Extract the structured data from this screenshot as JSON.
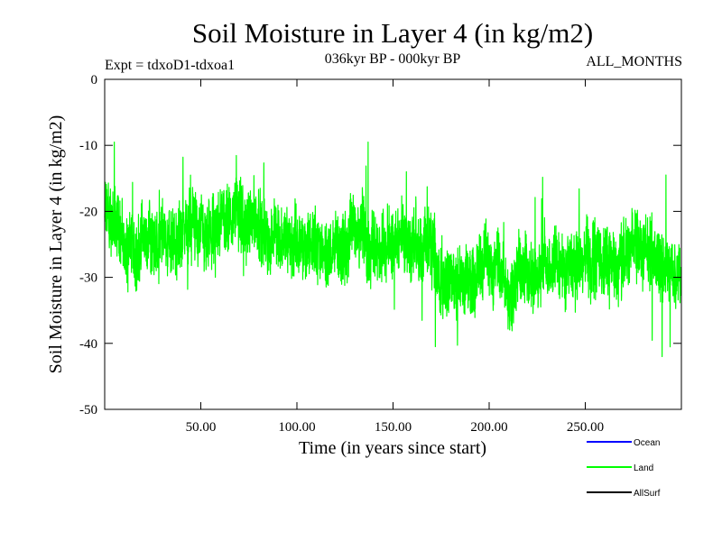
{
  "chart_data": {
    "type": "line",
    "title": "Soil Moisture in Layer 4 (in kg/m2)",
    "subtitle": "036kyr BP - 000kyr BP",
    "experiment_label": "Expt = tdxoD1-tdxoa1",
    "months_label": "ALL_MONTHS",
    "xlabel": "Time (in years since start)",
    "ylabel": "Soil Moisture in Layer 4 (in kg/m2)",
    "xlim": [
      0,
      300
    ],
    "ylim": [
      -50,
      0
    ],
    "x_ticks": [
      50,
      100,
      150,
      200,
      250
    ],
    "x_tick_labels": [
      "50.00",
      "100.00",
      "150.00",
      "200.00",
      "250.00"
    ],
    "y_ticks": [
      0,
      -10,
      -20,
      -30,
      -40,
      -50
    ],
    "y_tick_labels": [
      "0",
      "-10",
      "-20",
      "-30",
      "-40",
      "-50"
    ],
    "legend": [
      {
        "name": "Ocean",
        "color": "#0000ff"
      },
      {
        "name": "Land",
        "color": "#00ff00"
      },
      {
        "name": "AllSurf",
        "color": "#000000"
      }
    ],
    "series": [
      {
        "name": "Land",
        "color": "#00ff00",
        "x_start": 0,
        "x_step": 0.0833,
        "n_points": 3600,
        "mean_trend": [
          [
            0,
            -20
          ],
          [
            10,
            -23
          ],
          [
            100,
            -25
          ],
          [
            150,
            -26
          ],
          [
            200,
            -28
          ],
          [
            250,
            -27
          ],
          [
            300,
            -28
          ]
        ],
        "typical_range": [
          -37,
          -13
        ],
        "notable_points": [
          {
            "x": 5,
            "y": -9.5
          },
          {
            "x": 137,
            "y": -9.5
          },
          {
            "x": 172,
            "y": -40.5
          },
          {
            "x": 290,
            "y": -42
          },
          {
            "x": 292,
            "y": -14.5
          }
        ]
      }
    ]
  }
}
